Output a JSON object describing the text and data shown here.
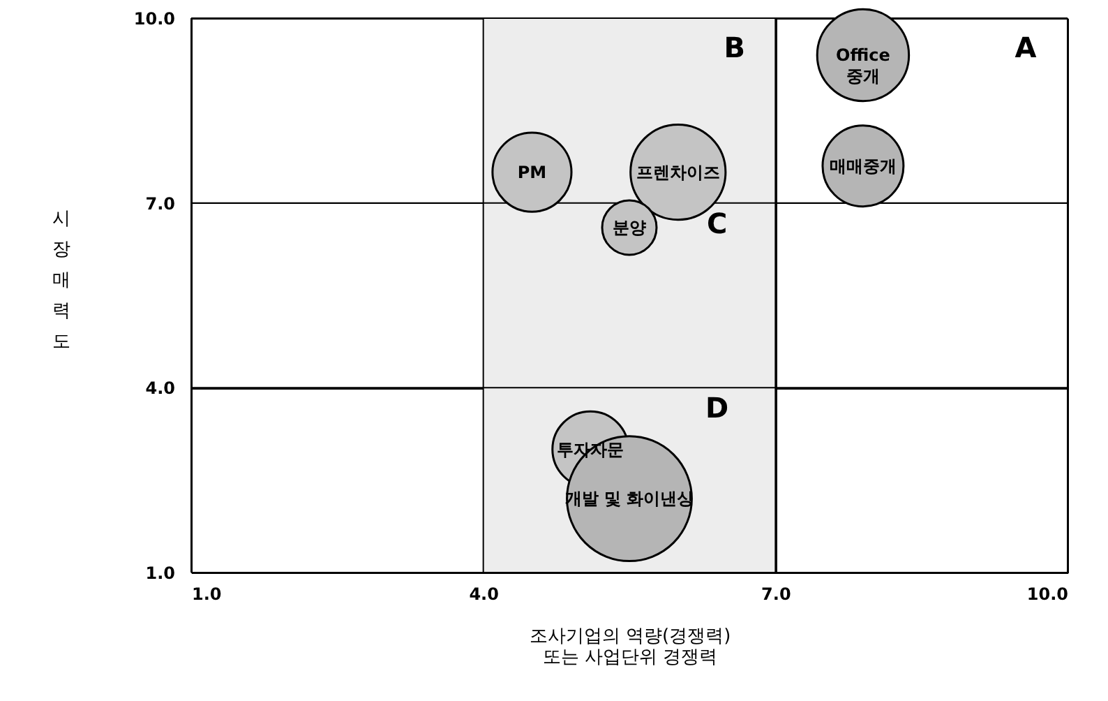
{
  "chart_data": {
    "type": "bubble",
    "xlabel": "조사기업의 역량(경쟁력)\n또는 사업단위 경쟁력",
    "ylabel": "시장매력도",
    "xlim": [
      1,
      10
    ],
    "ylim": [
      1,
      10
    ],
    "xticks": [
      {
        "value": 1,
        "label": "1.0"
      },
      {
        "value": 4,
        "label": "4.0"
      },
      {
        "value": 7,
        "label": "7.0"
      },
      {
        "value": 10,
        "label": "10.0"
      }
    ],
    "yticks": [
      {
        "value": 1,
        "label": "1.0"
      },
      {
        "value": 4,
        "label": "4.0"
      },
      {
        "value": 7,
        "label": "7.0"
      },
      {
        "value": 10,
        "label": "10.0"
      }
    ],
    "grid": true,
    "bands": [
      {
        "axis": "x",
        "from": 4,
        "to": 7,
        "color": "#ededed"
      }
    ],
    "annotations": [
      "A",
      "B",
      "C",
      "D"
    ],
    "series": [
      {
        "name": "Office\n중개",
        "color": "#b5b5b5",
        "x": [
          7.9
        ],
        "values": [
          9.4
        ],
        "sizes": [
          0.54
        ]
      },
      {
        "name": "매매중개",
        "color": "#b5b5b5",
        "x": [
          7.9
        ],
        "values": [
          7.6
        ],
        "sizes": [
          0.42
        ]
      },
      {
        "name": "PM",
        "color": "#c4c4c4",
        "x": [
          4.5
        ],
        "values": [
          7.5
        ],
        "sizes": [
          0.4
        ]
      },
      {
        "name": "프렌차이즈",
        "color": "#c4c4c4",
        "x": [
          6.0
        ],
        "values": [
          7.5
        ],
        "sizes": [
          0.58
        ]
      },
      {
        "name": "분양",
        "color": "#c4c4c4",
        "x": [
          5.5
        ],
        "values": [
          6.6
        ],
        "sizes": [
          0.19
        ]
      },
      {
        "name": "투자자문",
        "color": "#c4c4c4",
        "x": [
          5.1
        ],
        "values": [
          3.0
        ],
        "sizes": [
          0.37
        ]
      },
      {
        "name": "개발 및 화이낸싱",
        "color": "#b5b5b5",
        "x": [
          5.5
        ],
        "values": [
          2.2
        ],
        "sizes": [
          1
        ]
      }
    ]
  }
}
